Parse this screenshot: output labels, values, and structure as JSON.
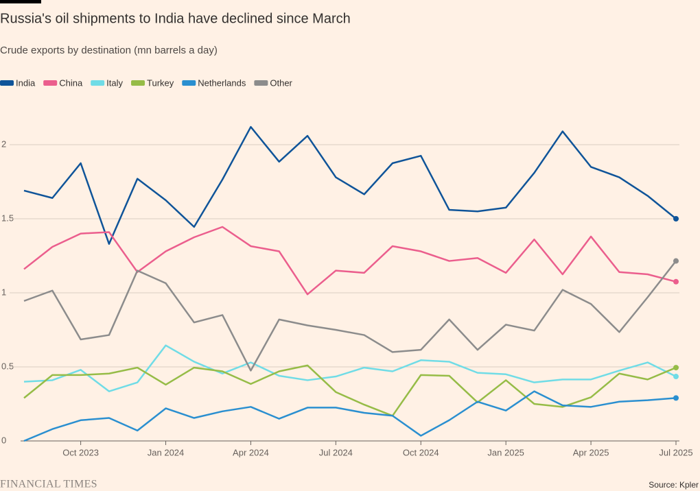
{
  "chart_data": {
    "type": "line",
    "title": "Russia's oil shipments to India have declined since March",
    "subtitle": "Crude exports by destination (mn barrels a day)",
    "source": "Source: Kpler",
    "brand": "FINANCIAL TIMES",
    "x": [
      "2023-08",
      "2023-09",
      "2023-10",
      "2023-11",
      "2023-12",
      "2024-01",
      "2024-02",
      "2024-03",
      "2024-04",
      "2024-05",
      "2024-06",
      "2024-07",
      "2024-08",
      "2024-09",
      "2024-10",
      "2024-11",
      "2024-12",
      "2025-01",
      "2025-02",
      "2025-03",
      "2025-04",
      "2025-05",
      "2025-06",
      "2025-07"
    ],
    "xticks": [
      {
        "value": "2023-10",
        "label": "Oct 2023"
      },
      {
        "value": "2024-01",
        "label": "Jan 2024"
      },
      {
        "value": "2024-04",
        "label": "Apr 2024"
      },
      {
        "value": "2024-07",
        "label": "Jul 2024"
      },
      {
        "value": "2024-10",
        "label": "Oct 2024"
      },
      {
        "value": "2025-01",
        "label": "Jan 2025"
      },
      {
        "value": "2025-04",
        "label": "Apr 2025"
      },
      {
        "value": "2025-07",
        "label": "Jul 2025"
      }
    ],
    "ylim": [
      0,
      2.2
    ],
    "yticks": [
      0,
      0.5,
      1,
      1.5,
      2
    ],
    "grid": true,
    "legend": "top-left",
    "series": [
      {
        "name": "India",
        "color": "#0f5499",
        "values": [
          1.69,
          1.64,
          1.875,
          1.33,
          1.77,
          1.625,
          1.445,
          1.765,
          2.12,
          1.885,
          2.06,
          1.78,
          1.665,
          1.875,
          1.925,
          1.56,
          1.55,
          1.575,
          1.81,
          2.09,
          1.85,
          1.78,
          1.655,
          1.5
        ]
      },
      {
        "name": "China",
        "color": "#eb5e8d",
        "values": [
          1.16,
          1.31,
          1.4,
          1.41,
          1.14,
          1.28,
          1.375,
          1.445,
          1.315,
          1.28,
          0.99,
          1.15,
          1.135,
          1.315,
          1.28,
          1.215,
          1.235,
          1.135,
          1.36,
          1.125,
          1.38,
          1.14,
          1.125,
          1.075
        ]
      },
      {
        "name": "Italy",
        "color": "#70dce6",
        "values": [
          0.4,
          0.41,
          0.48,
          0.335,
          0.395,
          0.645,
          0.535,
          0.455,
          0.53,
          0.44,
          0.41,
          0.435,
          0.495,
          0.47,
          0.545,
          0.535,
          0.46,
          0.45,
          0.395,
          0.415,
          0.415,
          0.475,
          0.53,
          0.435
        ]
      },
      {
        "name": "Turkey",
        "color": "#96bc47",
        "values": [
          0.29,
          0.445,
          0.445,
          0.455,
          0.495,
          0.38,
          0.495,
          0.47,
          0.385,
          0.47,
          0.51,
          0.33,
          0.245,
          0.17,
          0.445,
          0.44,
          0.26,
          0.41,
          0.25,
          0.23,
          0.295,
          0.455,
          0.415,
          0.495
        ]
      },
      {
        "name": "Netherlands",
        "color": "#2a8fd0",
        "values": [
          0,
          0.08,
          0.14,
          0.155,
          0.07,
          0.22,
          0.155,
          0.2,
          0.23,
          0.15,
          0.225,
          0.225,
          0.19,
          0.17,
          0.035,
          0.14,
          0.265,
          0.205,
          0.335,
          0.24,
          0.23,
          0.265,
          0.275,
          0.29
        ]
      },
      {
        "name": "Other",
        "color": "#8c8c8c",
        "values": [
          0.945,
          1.015,
          0.685,
          0.715,
          1.15,
          1.065,
          0.8,
          0.85,
          0.475,
          0.82,
          0.78,
          0.75,
          0.715,
          0.6,
          0.615,
          0.82,
          0.615,
          0.785,
          0.745,
          1.02,
          0.925,
          0.735,
          0.97,
          1.215
        ]
      }
    ]
  }
}
